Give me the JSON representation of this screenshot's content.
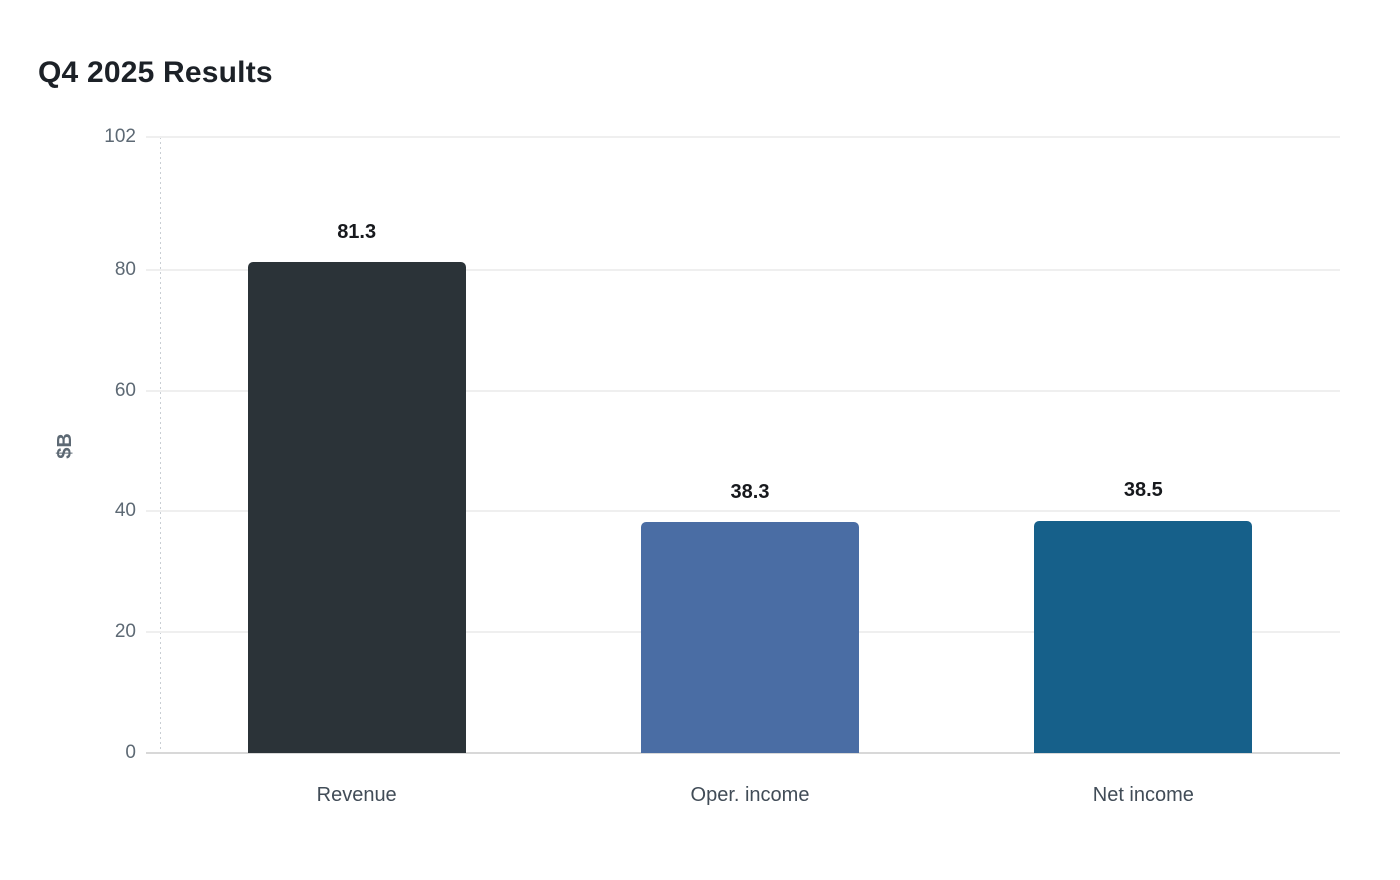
{
  "page": {
    "background": "#ffffff"
  },
  "chart_data": {
    "type": "bar",
    "title": "Q4 2025 Results",
    "ylabel": "$B",
    "xlabel": "",
    "categories": [
      "Revenue",
      "Oper. income",
      "Net income"
    ],
    "values": [
      81.3,
      38.3,
      38.5
    ],
    "value_labels": [
      "81.3",
      "38.3",
      "38.5"
    ],
    "bar_colors": [
      "#2b3338",
      "#4a6da4",
      "#16608a"
    ],
    "ylim": [
      0,
      102
    ],
    "yticks": [
      0,
      20,
      40,
      60,
      80,
      102
    ],
    "grid": "horizontal-light",
    "legend": "none",
    "value_label_position": "above-bars"
  },
  "styles": {
    "title_color": "#1c2127",
    "tick_label_color": "#5d6974",
    "category_label_color": "#414c57",
    "value_label_color": "#17191d",
    "ylabel_color": "#5d6974",
    "gridline_color": "#efefef",
    "baseline_color": "#d8d8d8",
    "axis_line_color": "#c9ced3"
  }
}
